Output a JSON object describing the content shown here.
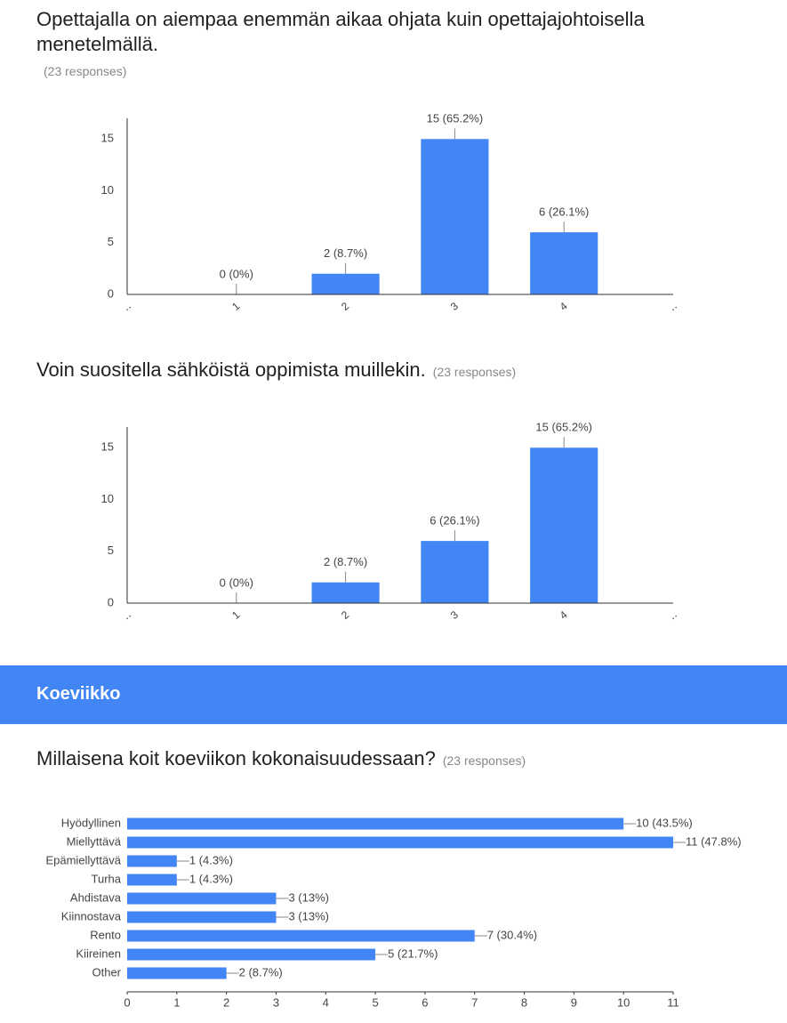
{
  "section_title": "Koeviikko",
  "chart_data": [
    {
      "type": "bar",
      "title": "Opettajalla on aiempaa enemmän aikaa ohjata kuin opettajajohtoisella menetelmällä.",
      "subtitle": "(23 responses)",
      "x": [
        1,
        2,
        3,
        4
      ],
      "values": [
        0,
        2,
        15,
        6
      ],
      "value_labels": [
        "0 (0%)",
        "2 (8.7%)",
        "15 (65.2%)",
        "6 (26.1%)"
      ],
      "color": "#4285f4",
      "xlim": [
        0,
        5
      ],
      "xticks": [
        {
          "value": 0,
          "label": "‥"
        },
        1,
        2,
        3,
        4,
        {
          "value": 5,
          "label": "‥"
        }
      ],
      "ylim": [
        0,
        17
      ],
      "yticks": [
        0,
        5,
        10,
        15
      ]
    },
    {
      "type": "bar",
      "title": "Voin suositella sähköistä oppimista muillekin.",
      "subtitle": "(23 responses)",
      "x": [
        1,
        2,
        3,
        4
      ],
      "values": [
        0,
        2,
        6,
        15
      ],
      "value_labels": [
        "0 (0%)",
        "2 (8.7%)",
        "6 (26.1%)",
        "15 (65.2%)"
      ],
      "color": "#4285f4",
      "xlim": [
        0,
        5
      ],
      "xticks": [
        {
          "value": 0,
          "label": "‥"
        },
        1,
        2,
        3,
        4,
        {
          "value": 5,
          "label": "‥"
        }
      ],
      "ylim": [
        0,
        17
      ],
      "yticks": [
        0,
        5,
        10,
        15
      ]
    },
    {
      "type": "hbar",
      "title": "Millaisena koit koeviikon kokonaisuudessaan?",
      "subtitle": "(23 responses)",
      "categories": [
        "Hyödyllinen",
        "Miellyttävä",
        "Epämiellyttävä",
        "Turha",
        "Ahdistava",
        "Kiinnostava",
        "Rento",
        "Kiireinen",
        "Other"
      ],
      "values": [
        10,
        11,
        1,
        1,
        3,
        3,
        7,
        5,
        2
      ],
      "value_labels": [
        "10 (43.5%)",
        "11 (47.8%)",
        "1 (4.3%)",
        "1 (4.3%)",
        "3 (13%)",
        "3 (13%)",
        "7 (30.4%)",
        "5 (21.7%)",
        "2 (8.7%)"
      ],
      "color": "#4285f4",
      "xlim": [
        0,
        11
      ],
      "xticks": [
        0,
        1,
        2,
        3,
        4,
        5,
        6,
        7,
        8,
        9,
        10,
        11
      ]
    }
  ]
}
